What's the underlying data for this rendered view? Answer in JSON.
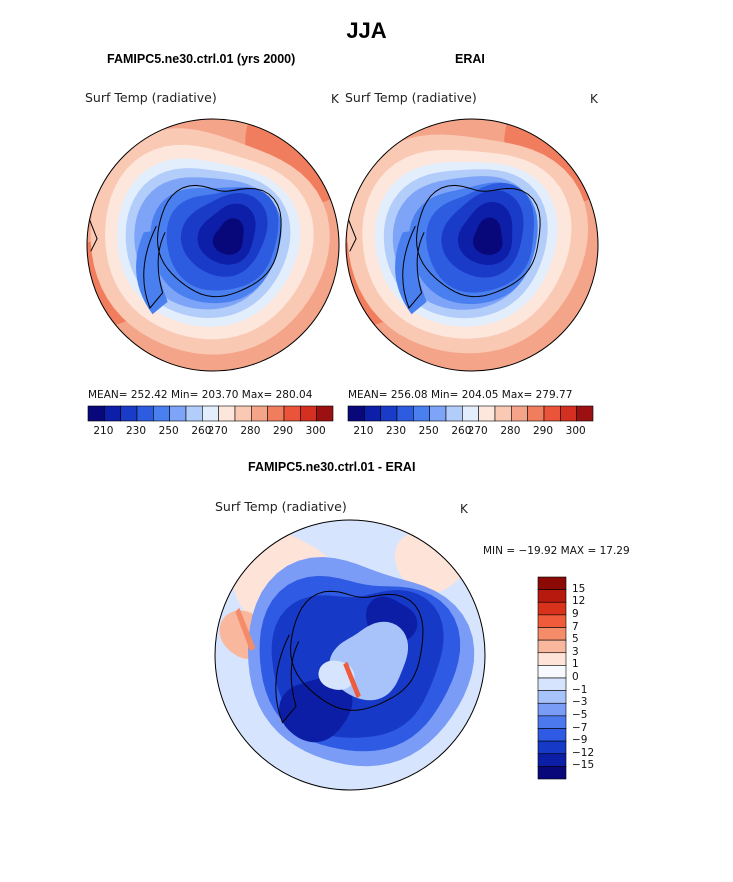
{
  "season": "JJA",
  "variable": "Surf Temp (radiative)",
  "units": "K",
  "colors": {
    "abs_scale": [
      "#08087a",
      "#0d1ea8",
      "#1a3bc8",
      "#2d5ce0",
      "#4a7ff0",
      "#7ea4f7",
      "#b3cdfa",
      "#e3eefd",
      "#fde6dc",
      "#f9c9b4",
      "#f4a589",
      "#f07d5e",
      "#e9543a",
      "#d33022",
      "#9b1111"
    ],
    "diff_scale": [
      "#08087a",
      "#0c1ea6",
      "#1739c8",
      "#2f5ae4",
      "#4d79ef",
      "#7a9cf6",
      "#a8c2fa",
      "#d6e4fd",
      "#f7f9ff",
      "#fde3d8",
      "#f9b89e",
      "#f48c69",
      "#ef5b3b",
      "#d8321d",
      "#b7190e",
      "#8c0a05"
    ]
  },
  "chart_data": [
    {
      "type": "heatmap",
      "title": "FAMIPC5.ne30.ctrl.01 (yrs 2000)",
      "subtitle": "Surf Temp (radiative)",
      "units": "K",
      "projection": "south-polar stereographic",
      "stats": "MEAN= 252.42   Min= 203.70   Max= 280.04",
      "mean": 252.42,
      "min": 203.7,
      "max": 280.04,
      "colorbar_ticks": [
        "210",
        "230",
        "250",
        "260",
        "270",
        "280",
        "290",
        "300"
      ]
    },
    {
      "type": "heatmap",
      "title": "ERAI",
      "subtitle": "Surf Temp (radiative)",
      "units": "K",
      "projection": "south-polar stereographic",
      "stats": "MEAN= 256.08   Min= 204.05   Max= 279.77",
      "mean": 256.08,
      "min": 204.05,
      "max": 279.77,
      "colorbar_ticks": [
        "210",
        "230",
        "250",
        "260",
        "270",
        "280",
        "290",
        "300"
      ]
    },
    {
      "type": "heatmap",
      "title": "FAMIPC5.ne30.ctrl.01 - ERAI",
      "subtitle": "Surf Temp (radiative)",
      "units": "K",
      "projection": "south-polar stereographic",
      "stats": "MIN = −19.92 MAX =   17.29",
      "min": -19.92,
      "max": 17.29,
      "colorbar_ticks": [
        "15",
        "12",
        "9",
        "7",
        "5",
        "3",
        "1",
        "0",
        "−1",
        "−3",
        "−5",
        "−7",
        "−9",
        "−12",
        "−15"
      ]
    }
  ]
}
